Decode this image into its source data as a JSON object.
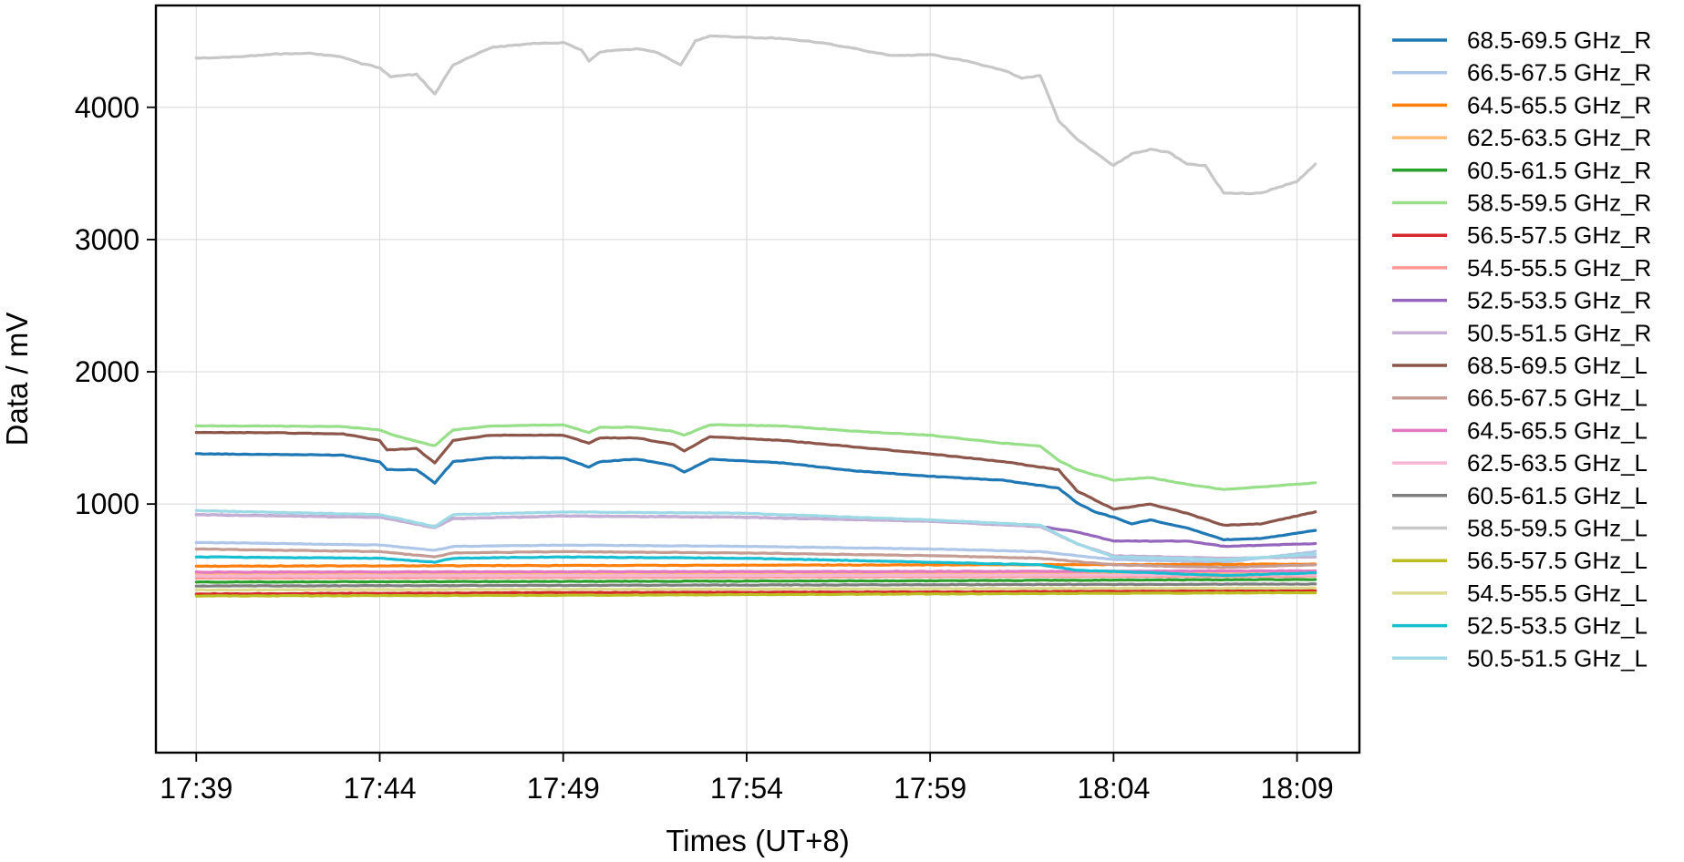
{
  "chart_data": {
    "type": "line",
    "xlabel": "Times (UT+8)",
    "ylabel": "Data / mV",
    "x_ticks": [
      "17:39",
      "17:44",
      "17:49",
      "17:54",
      "17:59",
      "18:04",
      "18:09"
    ],
    "x_tick_minutes": [
      0,
      5,
      10,
      15,
      20,
      25,
      30
    ],
    "xlim_minutes": [
      -1.1,
      31.7
    ],
    "y_ticks": [
      1000,
      2000,
      3000,
      4000
    ],
    "ylim": [
      -880,
      4770
    ],
    "grid": true,
    "legend_position": "outside-right",
    "series": [
      {
        "name": "68.5-69.5 GHz_R",
        "color": "#1f77b4",
        "x": [
          0,
          2,
          4,
          5,
          5.2,
          6,
          6.5,
          7,
          8,
          10,
          10.7,
          11,
          12,
          13,
          13.3,
          14,
          16,
          18,
          20,
          22,
          23,
          23.5,
          24,
          24.5,
          25,
          25.5,
          26,
          27,
          28,
          29,
          30.5
        ],
        "values": [
          1380,
          1375,
          1370,
          1320,
          1260,
          1260,
          1160,
          1320,
          1350,
          1350,
          1280,
          1320,
          1340,
          1290,
          1240,
          1340,
          1310,
          1250,
          1210,
          1180,
          1140,
          1120,
          1010,
          940,
          900,
          850,
          880,
          820,
          730,
          740,
          800
        ]
      },
      {
        "name": "66.5-67.5 GHz_R",
        "color": "#aec7e8",
        "x": [
          0,
          5,
          6.5,
          7,
          10,
          15,
          20,
          23,
          25,
          28,
          30.5
        ],
        "values": [
          710,
          690,
          650,
          680,
          690,
          680,
          660,
          640,
          580,
          560,
          640
        ]
      },
      {
        "name": "64.5-65.5 GHz_R",
        "color": "#ff7f0e",
        "x": [
          0,
          10,
          20,
          30.5
        ],
        "values": [
          530,
          535,
          540,
          545
        ]
      },
      {
        "name": "62.5-63.5 GHz_R",
        "color": "#ffbb78",
        "x": [
          0,
          10,
          20,
          30.5
        ],
        "values": [
          470,
          472,
          475,
          478
        ]
      },
      {
        "name": "60.5-61.5 GHz_R",
        "color": "#2ca02c",
        "x": [
          0,
          10,
          20,
          30.5
        ],
        "values": [
          410,
          415,
          420,
          430
        ]
      },
      {
        "name": "58.5-59.5 GHz_R",
        "color": "#98df8a",
        "x": [
          0,
          2,
          4,
          5,
          5.5,
          6.5,
          7,
          8,
          10,
          10.7,
          11,
          12,
          13,
          13.3,
          14,
          16,
          18,
          20,
          22,
          23,
          23.5,
          24,
          25,
          26,
          27,
          28,
          30.5
        ],
        "values": [
          1590,
          1590,
          1585,
          1560,
          1510,
          1440,
          1560,
          1590,
          1600,
          1540,
          1580,
          1580,
          1550,
          1520,
          1600,
          1590,
          1550,
          1520,
          1460,
          1440,
          1330,
          1260,
          1180,
          1200,
          1150,
          1110,
          1160
        ]
      },
      {
        "name": "56.5-57.5 GHz_R",
        "color": "#d62728",
        "x": [
          0,
          10,
          20,
          30.5
        ],
        "values": [
          320,
          330,
          335,
          345
        ]
      },
      {
        "name": "54.5-55.5 GHz_R",
        "color": "#ff9896",
        "x": [
          0,
          10,
          20,
          30.5
        ],
        "values": [
          440,
          445,
          450,
          455
        ]
      },
      {
        "name": "52.5-53.5 GHz_R",
        "color": "#9467bd",
        "x": [
          0,
          5,
          6.5,
          7,
          10,
          15,
          20,
          23,
          24,
          25,
          27,
          28,
          30.5
        ],
        "values": [
          920,
          900,
          830,
          890,
          910,
          900,
          870,
          830,
          790,
          720,
          720,
          680,
          700
        ]
      },
      {
        "name": "50.5-51.5 GHz_R",
        "color": "#c5b0d5",
        "x": [
          0,
          5,
          6.5,
          7,
          10,
          15,
          20,
          23,
          24,
          25,
          28,
          30.5
        ],
        "values": [
          920,
          900,
          820,
          890,
          910,
          900,
          870,
          830,
          700,
          610,
          590,
          600
        ]
      },
      {
        "name": "68.5-69.5 GHz_L",
        "color": "#8c564b",
        "x": [
          0,
          2,
          4,
          5,
          5.2,
          6,
          6.5,
          7,
          8,
          10,
          10.7,
          11,
          12,
          13,
          13.3,
          14,
          16,
          18,
          20,
          22,
          23,
          23.5,
          24,
          25,
          26,
          27,
          28,
          29,
          30.5
        ],
        "values": [
          1540,
          1540,
          1530,
          1480,
          1410,
          1420,
          1310,
          1480,
          1520,
          1520,
          1460,
          1500,
          1500,
          1450,
          1400,
          1510,
          1480,
          1430,
          1380,
          1320,
          1280,
          1260,
          1100,
          960,
          1000,
          930,
          840,
          850,
          940
        ]
      },
      {
        "name": "66.5-67.5 GHz_L",
        "color": "#c49c94",
        "x": [
          0,
          5,
          6.5,
          7,
          10,
          15,
          20,
          23,
          25,
          28,
          30.5
        ],
        "values": [
          660,
          640,
          600,
          630,
          640,
          630,
          610,
          590,
          540,
          520,
          540
        ]
      },
      {
        "name": "64.5-65.5 GHz_L",
        "color": "#e377c2",
        "x": [
          0,
          10,
          20,
          30.5
        ],
        "values": [
          485,
          488,
          490,
          495
        ]
      },
      {
        "name": "62.5-63.5 GHz_L",
        "color": "#f7b6d2",
        "x": [
          0,
          10,
          20,
          30.5
        ],
        "values": [
          455,
          458,
          460,
          465
        ]
      },
      {
        "name": "60.5-61.5 GHz_L",
        "color": "#7f7f7f",
        "x": [
          0,
          10,
          20,
          30.5
        ],
        "values": [
          380,
          385,
          390,
          395
        ]
      },
      {
        "name": "58.5-59.5 GHz_L",
        "color": "#c7c7c7",
        "x": [
          0,
          1,
          2,
          3,
          4,
          4.5,
          5,
          5.3,
          6,
          6.5,
          7,
          8,
          9,
          10,
          10.5,
          10.7,
          11,
          12,
          12.5,
          13,
          13.2,
          13.6,
          14,
          15,
          16,
          17,
          18,
          19,
          20,
          21,
          22,
          22.5,
          23,
          23.5,
          24,
          25,
          25.5,
          26,
          26.5,
          27,
          27.5,
          28,
          29,
          30,
          30.5
        ],
        "values": [
          4370,
          4380,
          4400,
          4410,
          4380,
          4330,
          4300,
          4230,
          4250,
          4100,
          4320,
          4450,
          4480,
          4490,
          4430,
          4350,
          4420,
          4440,
          4420,
          4350,
          4320,
          4500,
          4540,
          4530,
          4520,
          4490,
          4440,
          4390,
          4400,
          4350,
          4280,
          4220,
          4240,
          3900,
          3760,
          3560,
          3650,
          3680,
          3660,
          3570,
          3560,
          3350,
          3350,
          3440,
          3570
        ]
      },
      {
        "name": "56.5-57.5 GHz_L",
        "color": "#bcbd22",
        "x": [
          0,
          10,
          20,
          30.5
        ],
        "values": [
          305,
          310,
          320,
          330
        ]
      },
      {
        "name": "54.5-55.5 GHz_L",
        "color": "#dbdb8d",
        "x": [
          0,
          10,
          20,
          30.5
        ],
        "values": [
          350,
          355,
          360,
          365
        ]
      },
      {
        "name": "52.5-53.5 GHz_L",
        "color": "#17becf",
        "x": [
          0,
          5,
          6.5,
          7,
          10,
          15,
          20,
          23,
          24,
          25,
          28,
          30.5
        ],
        "values": [
          600,
          590,
          560,
          590,
          600,
          590,
          560,
          540,
          500,
          490,
          460,
          480
        ]
      },
      {
        "name": "50.5-51.5 GHz_L",
        "color": "#9edae5",
        "x": [
          0,
          5,
          6.5,
          7,
          10,
          15,
          20,
          23,
          24,
          25,
          28,
          30.5
        ],
        "values": [
          950,
          920,
          830,
          920,
          940,
          930,
          880,
          840,
          700,
          600,
          580,
          620
        ]
      }
    ]
  }
}
